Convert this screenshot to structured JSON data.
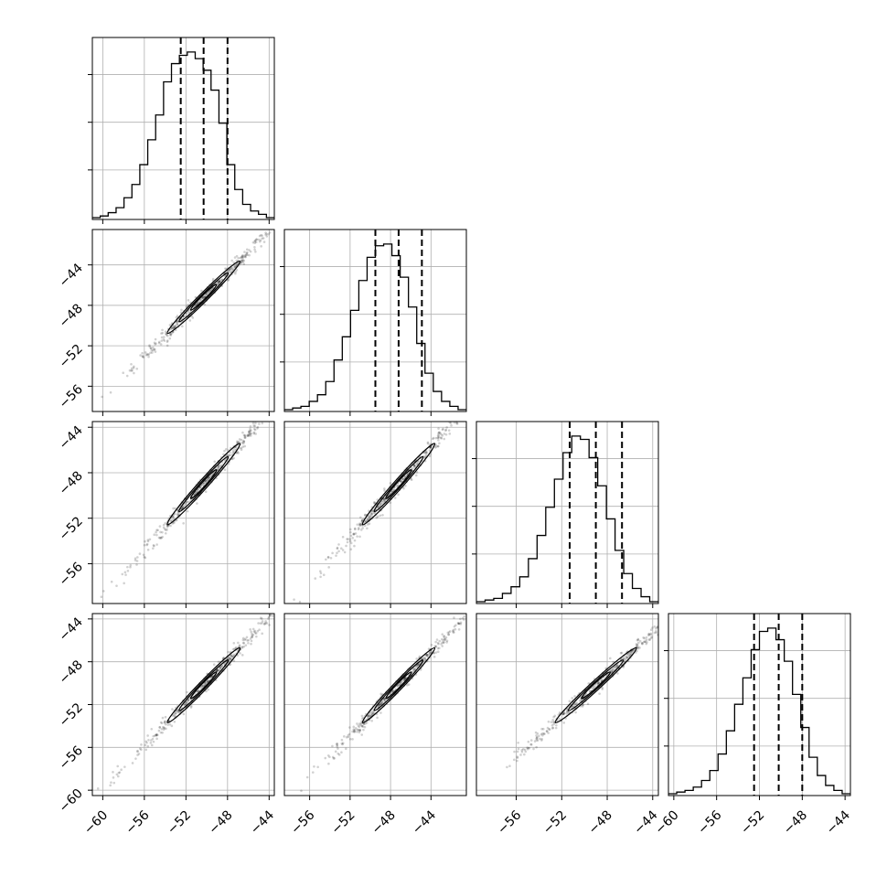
{
  "chart_data": {
    "type": "corner",
    "n_params": 4,
    "param_labels": [
      "",
      "",
      "",
      ""
    ],
    "ranges": [
      [
        -61,
        -43.5
      ],
      [
        -58.5,
        -40.5
      ],
      [
        -59.5,
        -43.5
      ],
      [
        -60.5,
        -43.5
      ]
    ],
    "medians": [
      -50.3,
      -47.2,
      -49.0,
      -50.2
    ],
    "q16": [
      -52.5,
      -49.5,
      -51.3,
      -52.5
    ],
    "q84": [
      -48.0,
      -44.9,
      -46.7,
      -48.0
    ],
    "hist_bins": [
      [
        0.0,
        0.01,
        0.03,
        0.06,
        0.12,
        0.2,
        0.32,
        0.47,
        0.62,
        0.82,
        0.93,
        0.98,
        1.0,
        0.96,
        0.89,
        0.77,
        0.57,
        0.32,
        0.17,
        0.08,
        0.04,
        0.02,
        0.0
      ],
      [
        0.0,
        0.01,
        0.02,
        0.05,
        0.09,
        0.17,
        0.3,
        0.44,
        0.6,
        0.78,
        0.92,
        0.99,
        1.0,
        0.93,
        0.8,
        0.62,
        0.4,
        0.22,
        0.11,
        0.05,
        0.02,
        0.0
      ],
      [
        0.0,
        0.01,
        0.02,
        0.05,
        0.09,
        0.15,
        0.26,
        0.4,
        0.57,
        0.74,
        0.9,
        1.0,
        0.98,
        0.87,
        0.7,
        0.5,
        0.31,
        0.17,
        0.08,
        0.03,
        0.0
      ],
      [
        0.0,
        0.01,
        0.02,
        0.04,
        0.08,
        0.14,
        0.24,
        0.38,
        0.54,
        0.7,
        0.87,
        0.98,
        1.0,
        0.93,
        0.8,
        0.6,
        0.4,
        0.22,
        0.11,
        0.05,
        0.02,
        0.0
      ]
    ],
    "correlation": 0.995,
    "ticks": {
      "p0": [
        "−60",
        "−56",
        "−52",
        "−48",
        "−44"
      ],
      "p1": [
        "−56",
        "−52",
        "−48",
        "−44"
      ],
      "p2": [
        "−56",
        "−52",
        "−48",
        "−44"
      ],
      "p3": [
        "−60",
        "−56",
        "−52",
        "−48",
        "−44"
      ]
    },
    "tick_values": {
      "p0": [
        -60,
        -56,
        -52,
        -48,
        -44
      ],
      "p1": [
        -56,
        -52,
        -48,
        -44
      ],
      "p2": [
        -56,
        -52,
        -48,
        -44
      ],
      "p3": [
        -60,
        -56,
        -52,
        -48,
        -44
      ]
    },
    "grid": true,
    "quantile_line_style": "dashed"
  }
}
